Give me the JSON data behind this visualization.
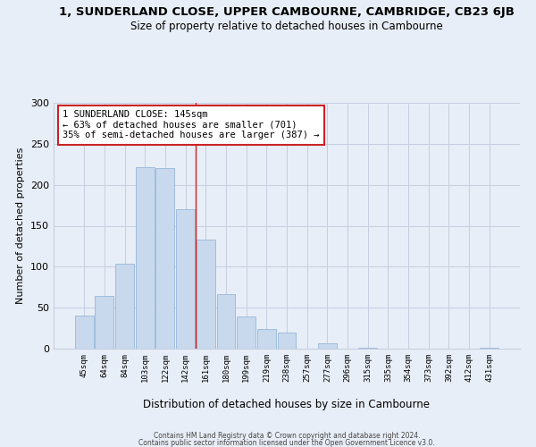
{
  "title": "1, SUNDERLAND CLOSE, UPPER CAMBOURNE, CAMBRIDGE, CB23 6JB",
  "subtitle": "Size of property relative to detached houses in Cambourne",
  "xlabel": "Distribution of detached houses by size in Cambourne",
  "ylabel": "Number of detached properties",
  "bar_labels": [
    "45sqm",
    "64sqm",
    "84sqm",
    "103sqm",
    "122sqm",
    "142sqm",
    "161sqm",
    "180sqm",
    "199sqm",
    "219sqm",
    "238sqm",
    "257sqm",
    "277sqm",
    "296sqm",
    "315sqm",
    "335sqm",
    "354sqm",
    "373sqm",
    "392sqm",
    "412sqm",
    "431sqm"
  ],
  "bar_values": [
    40,
    64,
    104,
    221,
    220,
    170,
    133,
    67,
    39,
    24,
    20,
    0,
    7,
    0,
    1,
    0,
    0,
    0,
    0,
    0,
    1
  ],
  "bar_color": "#c8d8ed",
  "bar_edge_color": "#8aafd4",
  "vline_x_index": 5,
  "vline_color": "#cc2222",
  "annotation_title": "1 SUNDERLAND CLOSE: 145sqm",
  "annotation_line1": "← 63% of detached houses are smaller (701)",
  "annotation_line2": "35% of semi-detached houses are larger (387) →",
  "annotation_box_color": "#ffffff",
  "annotation_box_edge": "#cc2222",
  "ylim": [
    0,
    300
  ],
  "yticks": [
    0,
    50,
    100,
    150,
    200,
    250,
    300
  ],
  "footer1": "Contains HM Land Registry data © Crown copyright and database right 2024.",
  "footer2": "Contains public sector information licensed under the Open Government Licence v3.0.",
  "bg_color": "#e8eef7",
  "grid_color": "#c5cfe0",
  "title_fontsize": 9.5,
  "subtitle_fontsize": 8.5
}
